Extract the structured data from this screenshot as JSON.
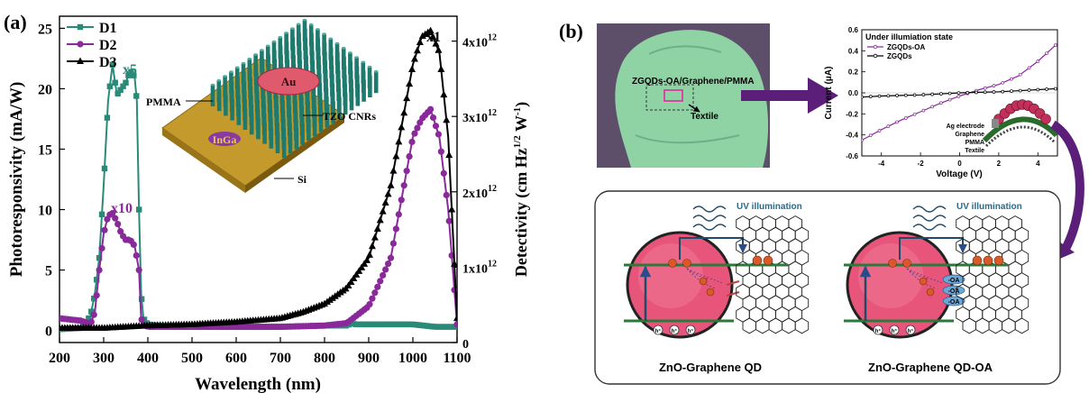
{
  "panel_a": {
    "label": "(a)",
    "annotations": {
      "x5": "x5",
      "x10": "x10",
      "x1": "x1"
    },
    "inset": {
      "au": "Au",
      "pmma": "PMMA",
      "tzo": "TZO CNRs",
      "inga": "InGa",
      "si": "Si"
    }
  },
  "panel_b": {
    "label": "(b)",
    "photo_label": "ZGQDs-OA/Graphene/PMMA",
    "photo_textile": "Textile",
    "iv_title": "Under illumiation state",
    "iv_ylabel": "Current (μA)",
    "iv_xlabel": "Voltage (V)",
    "iv_legend": [
      "ZGQDs-OA",
      "ZGQDs"
    ],
    "iv_xticks": [
      "-4",
      "-2",
      "0",
      "2",
      "4"
    ],
    "iv_yticks": [
      "0.6",
      "0.4",
      "0.2",
      "0.0",
      "-0.2",
      "-0.4",
      "-0.6"
    ],
    "device_layers": [
      "Ag electrode",
      "Graphene",
      "PMMA",
      "Textile"
    ],
    "schematic_left": {
      "uv": "UV illumination",
      "caption": "ZnO-Graphene QD",
      "holes": [
        "h⁺",
        "h⁺",
        "h⁺"
      ]
    },
    "schematic_right": {
      "uv": "UV illumination",
      "caption": "ZnO-Graphene QD-OA",
      "oa": [
        "-OA",
        "-OA",
        "-OA"
      ],
      "holes": [
        "h⁺",
        "h⁺",
        "h⁺"
      ]
    }
  },
  "colors": {
    "D1": "#2a8a78",
    "D2": "#8a2a9a",
    "D3": "#000000",
    "arrow": "#5b1f7a"
  },
  "chart_data": [
    {
      "type": "line",
      "xlabel": "Wavelength (nm)",
      "ylabel": "Photoresponsivity (mA/W)",
      "y2label": "Detectivity (cm Hz1/2 W-1)",
      "xlim": [
        200,
        1100
      ],
      "ylim": [
        -1,
        26
      ],
      "y2lim": [
        0,
        4330000000000.0
      ],
      "xticks": [
        "200",
        "300",
        "400",
        "500",
        "600",
        "700",
        "800",
        "900",
        "1000",
        "1100"
      ],
      "yticks": [
        "0",
        "5",
        "10",
        "15",
        "20",
        "25"
      ],
      "y2ticks": [
        "0",
        "1x10",
        "2x10",
        "3x10",
        "4x10"
      ],
      "y2tick_exp": "12",
      "legend_position": "top-left",
      "series": [
        {
          "name": "D1",
          "marker": "square",
          "x": [
            200,
            250,
            270,
            280,
            290,
            300,
            310,
            320,
            330,
            340,
            350,
            360,
            370,
            375,
            380,
            385,
            390,
            400,
            450,
            500,
            600,
            700,
            800,
            850,
            860,
            870,
            900,
            1000,
            1050,
            1100
          ],
          "y": [
            0.1,
            0.2,
            1.2,
            3,
            6,
            12,
            19,
            22,
            19.5,
            20,
            20.5,
            21.5,
            21,
            19,
            10,
            3,
            1,
            0.5,
            0.3,
            0.3,
            0.3,
            0.3,
            0.4,
            0.4,
            0.6,
            0.5,
            0.5,
            0.5,
            0.3,
            0.3
          ]
        },
        {
          "name": "D2",
          "marker": "circle",
          "x": [
            200,
            250,
            270,
            280,
            290,
            300,
            310,
            320,
            330,
            340,
            350,
            360,
            370,
            380,
            385,
            390,
            400,
            500,
            700,
            800,
            850,
            900,
            950,
            1000,
            1020,
            1040,
            1060,
            1080,
            1100
          ],
          "y": [
            1,
            0.8,
            0.5,
            1.5,
            5,
            8,
            9.5,
            9.7,
            9,
            8,
            7.5,
            7.5,
            7,
            5,
            1,
            0.5,
            0.3,
            0.3,
            0.3,
            0.4,
            0.6,
            2,
            6,
            16,
            17.5,
            18.3,
            16,
            10,
            0.5
          ]
        },
        {
          "name": "D3",
          "marker": "triangle",
          "x": [
            200,
            300,
            400,
            500,
            600,
            700,
            750,
            800,
            850,
            900,
            950,
            1000,
            1020,
            1040,
            1060,
            1080,
            1100
          ],
          "y": [
            0.2,
            0.2,
            0.4,
            0.5,
            0.7,
            1,
            1.5,
            2.2,
            3.5,
            6,
            12,
            22,
            24.3,
            24.8,
            23,
            16,
            1
          ]
        }
      ]
    },
    {
      "type": "line",
      "xlabel": "Voltage (V)",
      "ylabel": "Current (μA)",
      "xlim": [
        -5,
        5
      ],
      "ylim": [
        -0.6,
        0.6
      ],
      "legend_position": "top-left",
      "series": [
        {
          "name": "ZGQDs-OA",
          "x": [
            -5,
            -4,
            -3,
            -2,
            -1,
            0,
            1,
            2,
            3,
            4,
            5
          ],
          "y": [
            -0.45,
            -0.35,
            -0.26,
            -0.18,
            -0.1,
            -0.03,
            0.03,
            0.08,
            0.16,
            0.3,
            0.47
          ]
        },
        {
          "name": "ZGQDs",
          "x": [
            -5,
            -4,
            -3,
            -2,
            -1,
            0,
            1,
            2,
            3,
            4,
            5
          ],
          "y": [
            -0.04,
            -0.03,
            -0.025,
            -0.02,
            -0.01,
            0,
            0.005,
            0.01,
            0.02,
            0.03,
            0.04
          ]
        }
      ]
    }
  ]
}
